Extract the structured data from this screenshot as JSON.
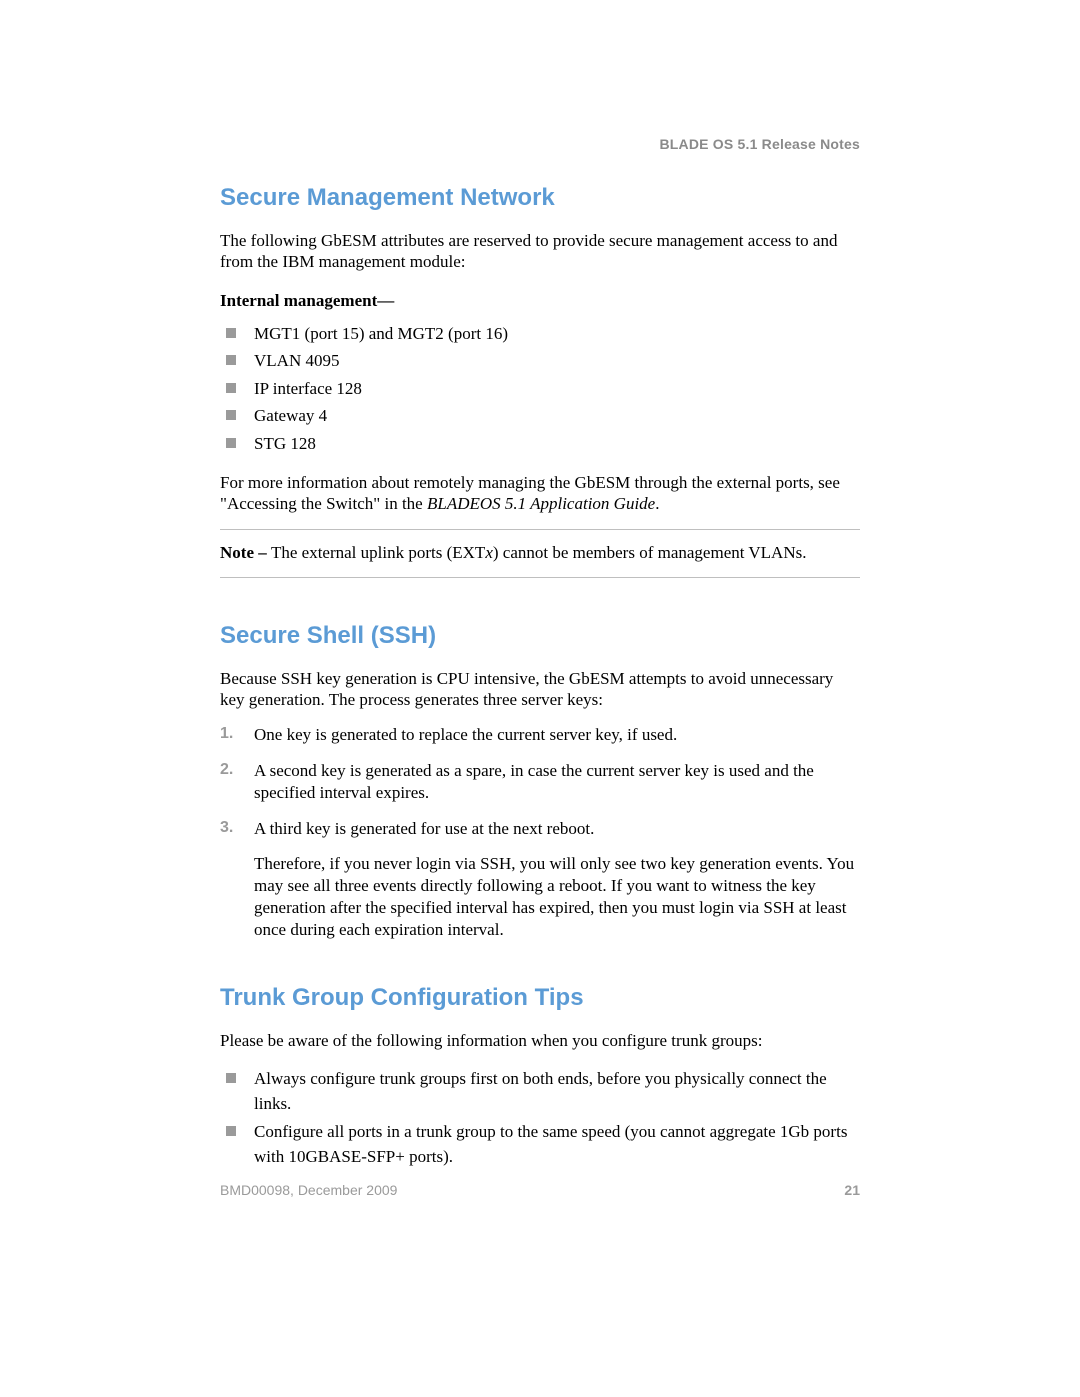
{
  "header": {
    "running_title": "BLADE OS 5.1 Release Notes"
  },
  "sections": {
    "smn": {
      "title": "Secure Management Network",
      "intro": "The following GbESM attributes are reserved to provide secure management access to and from the IBM management module:",
      "subhead": "Internal management—",
      "bullets": [
        "MGT1 (port 15) and MGT2 (port 16)",
        "VLAN 4095",
        "IP interface 128",
        "Gateway 4",
        "STG 128"
      ],
      "after1_a": "For more information about remotely managing the GbESM through the external ports, see \"Accessing the Switch\" in the ",
      "after1_ital": "BLADEOS 5.1 Application Guide",
      "after1_b": ".",
      "note_label": "Note – ",
      "note_a": "The external uplink ports (EXT",
      "note_ital": "x",
      "note_b": ") cannot be members of management VLANs."
    },
    "ssh": {
      "title": "Secure Shell (SSH)",
      "intro": "Because SSH key generation is CPU intensive, the GbESM attempts to avoid unnecessary key generation. The process generates three server keys:",
      "steps": [
        "One key is generated to replace the current server key, if used.",
        "A second key is generated as a spare, in case the current server key is used and the specified interval expires.",
        "A third key is generated for use at the next reboot."
      ],
      "after": "Therefore, if you never login via SSH, you will only see two key generation events. You may see all three events directly following a reboot. If you want to witness the key generation after the specified interval has expired, then you must login via SSH at least once during each expiration interval."
    },
    "trunk": {
      "title": "Trunk Group Configuration Tips",
      "intro": "Please be aware of the following information when you configure trunk groups:",
      "bullets": [
        "Always configure trunk groups first on both ends, before you physically connect the links.",
        "Configure all ports in a trunk group to the same speed (you cannot aggregate 1Gb ports with 10GBASE-SFP+ ports)."
      ]
    }
  },
  "footer": {
    "left": "BMD00098, December 2009",
    "page": "21"
  },
  "colors": {
    "heading": "#5b9bd5",
    "grey_text": "#9a9a9a",
    "bullet": "#9a9a9a",
    "rule": "#bfbfbf",
    "body": "#000000",
    "background": "#ffffff"
  },
  "typography": {
    "body_family": "Times New Roman",
    "heading_family": "Arial",
    "heading_size_pt": 18,
    "body_size_pt": 13,
    "footer_size_pt": 10
  }
}
